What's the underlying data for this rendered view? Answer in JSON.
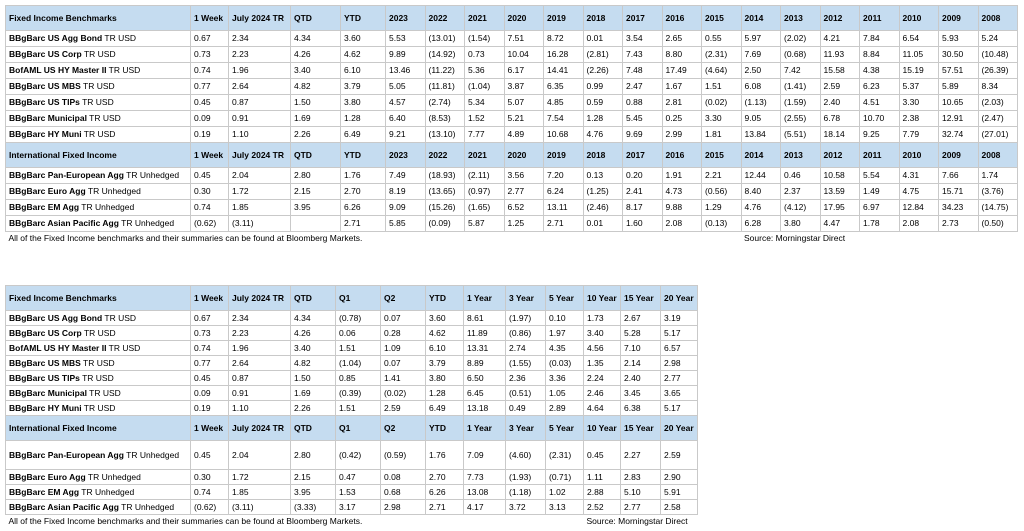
{
  "table1": {
    "header": [
      "Fixed Income Benchmarks",
      "1 Week",
      "July 2024 TR",
      "QTD",
      "YTD",
      "2023",
      "2022",
      "2021",
      "2020",
      "2019",
      "2018",
      "2017",
      "2016",
      "2015",
      "2014",
      "2013",
      "2012",
      "2011",
      "2010",
      "2009",
      "2008"
    ],
    "rows": [
      {
        "name": {
          "bold": "BBgBarc US Agg Bond",
          "rest": "TR USD"
        },
        "values": [
          "0.67",
          "2.34",
          "4.34",
          "3.60",
          "5.53",
          "(13.01)",
          "(1.54)",
          "7.51",
          "8.72",
          "0.01",
          "3.54",
          "2.65",
          "0.55",
          "5.97",
          "(2.02)",
          "4.21",
          "7.84",
          "6.54",
          "5.93",
          "5.24"
        ]
      },
      {
        "name": {
          "bold": "BBgBarc US Corp",
          "rest": "TR USD"
        },
        "values": [
          "0.73",
          "2.23",
          "4.26",
          "4.62",
          "9.89",
          "(14.92)",
          "0.73",
          "10.04",
          "16.28",
          "(2.81)",
          "7.43",
          "8.80",
          "(2.31)",
          "7.69",
          "(0.68)",
          "11.93",
          "8.84",
          "11.05",
          "30.50",
          "(10.48)"
        ]
      },
      {
        "name": {
          "bold": "BofAML US HY Master II",
          "rest": "TR USD"
        },
        "values": [
          "0.74",
          "1.96",
          "3.40",
          "6.10",
          "13.46",
          "(11.22)",
          "5.36",
          "6.17",
          "14.41",
          "(2.26)",
          "7.48",
          "17.49",
          "(4.64)",
          "2.50",
          "7.42",
          "15.58",
          "4.38",
          "15.19",
          "57.51",
          "(26.39)"
        ]
      },
      {
        "name": {
          "bold": "BBgBarc US MBS",
          "rest": "TR USD"
        },
        "values": [
          "0.77",
          "2.64",
          "4.82",
          "3.79",
          "5.05",
          "(11.81)",
          "(1.04)",
          "3.87",
          "6.35",
          "0.99",
          "2.47",
          "1.67",
          "1.51",
          "6.08",
          "(1.41)",
          "2.59",
          "6.23",
          "5.37",
          "5.89",
          "8.34"
        ]
      },
      {
        "name": {
          "bold": "BBgBarc US TIPs",
          "rest": "TR USD"
        },
        "values": [
          "0.45",
          "0.87",
          "1.50",
          "3.80",
          "4.57",
          "(2.74)",
          "5.34",
          "5.07",
          "4.85",
          "0.59",
          "0.88",
          "2.81",
          "(0.02)",
          "(1.13)",
          "(1.59)",
          "2.40",
          "4.51",
          "3.30",
          "10.65",
          "(2.03)"
        ]
      },
      {
        "name": {
          "bold": "BBgBarc Municipal",
          "rest": "TR USD"
        },
        "values": [
          "0.09",
          "0.91",
          "1.69",
          "1.28",
          "6.40",
          "(8.53)",
          "1.52",
          "5.21",
          "7.54",
          "1.28",
          "5.45",
          "0.25",
          "3.30",
          "9.05",
          "(2.55)",
          "6.78",
          "10.70",
          "2.38",
          "12.91",
          "(2.47)"
        ]
      },
      {
        "name": {
          "bold": "BBgBarc HY Muni",
          "rest": "TR USD"
        },
        "values": [
          "0.19",
          "1.10",
          "2.26",
          "6.49",
          "9.21",
          "(13.10)",
          "7.77",
          "4.89",
          "10.68",
          "4.76",
          "9.69",
          "2.99",
          "1.81",
          "13.84",
          "(5.51)",
          "18.14",
          "9.25",
          "7.79",
          "32.74",
          "(27.01)"
        ]
      }
    ],
    "intl_header": [
      "International Fixed Income",
      "1 Week",
      "July 2024 TR",
      "QTD",
      "YTD",
      "2023",
      "2022",
      "2021",
      "2020",
      "2019",
      "2018",
      "2017",
      "2016",
      "2015",
      "2014",
      "2013",
      "2012",
      "2011",
      "2010",
      "2009",
      "2008"
    ],
    "intl_rows": [
      {
        "name": {
          "bold": "BBgBarc Pan-European Agg",
          "rest": "TR Unhedged"
        },
        "values": [
          "0.45",
          "2.04",
          "2.80",
          "1.76",
          "7.49",
          "(18.93)",
          "(2.11)",
          "3.56",
          "7.20",
          "0.13",
          "0.20",
          "1.91",
          "2.21",
          "12.44",
          "0.46",
          "10.58",
          "5.54",
          "4.31",
          "7.66",
          "1.74"
        ]
      },
      {
        "name": {
          "bold": "BBgBarc Euro Agg",
          "rest": "TR Unhedged"
        },
        "values": [
          "0.30",
          "1.72",
          "2.15",
          "2.70",
          "8.19",
          "(13.65)",
          "(0.97)",
          "2.77",
          "6.24",
          "(1.25)",
          "2.41",
          "4.73",
          "(0.56)",
          "8.40",
          "2.37",
          "13.59",
          "1.49",
          "4.75",
          "15.71",
          "(3.76)"
        ]
      },
      {
        "name": {
          "bold": "BBgBarc EM Agg",
          "rest": "TR Unhedged"
        },
        "values": [
          "0.74",
          "1.85",
          "3.95",
          "6.26",
          "9.09",
          "(15.26)",
          "(1.65)",
          "6.52",
          "13.11",
          "(2.46)",
          "8.17",
          "9.88",
          "1.29",
          "4.76",
          "(4.12)",
          "17.95",
          "6.97",
          "12.84",
          "34.23",
          "(14.75)"
        ]
      },
      {
        "name": {
          "bold": "BBgBarc Asian Pacific Agg",
          "rest": "TR Unhedged"
        },
        "values": [
          "(0.62)",
          "(3.11)",
          null,
          "2.71",
          "5.85",
          "(0.09)",
          "5.87",
          "1.25",
          "2.71",
          "0.01",
          "1.60",
          "2.08",
          "(0.13)",
          "6.28",
          "3.80",
          "4.47",
          "1.78",
          "2.08",
          "2.73",
          "(0.50)"
        ]
      }
    ],
    "footnote": "All of the Fixed Income benchmarks and their summaries can be found at Bloomberg Markets.",
    "source": "Source: Morningstar Direct"
  },
  "table2": {
    "header": [
      "Fixed Income Benchmarks",
      "1 Week",
      "July 2024 TR",
      "QTD",
      "Q1",
      "Q2",
      "YTD",
      "1 Year",
      "3 Year",
      "5 Year",
      "10 Year",
      "15 Year",
      "20 Year"
    ],
    "rows": [
      {
        "name": {
          "bold": "BBgBarc US Agg Bond",
          "rest": "TR USD"
        },
        "values": [
          "0.67",
          "2.34",
          "4.34",
          "(0.78)",
          "0.07",
          "3.60",
          "8.61",
          "(1.97)",
          "0.10",
          "1.73",
          "2.67",
          "3.19"
        ]
      },
      {
        "name": {
          "bold": "BBgBarc US Corp",
          "rest": "TR USD"
        },
        "values": [
          "0.73",
          "2.23",
          "4.26",
          "0.06",
          "0.28",
          "4.62",
          "11.89",
          "(0.86)",
          "1.97",
          "3.40",
          "5.28",
          "5.17"
        ]
      },
      {
        "name": {
          "bold": "BofAML US HY Master II",
          "rest": "TR USD"
        },
        "values": [
          "0.74",
          "1.96",
          "3.40",
          "1.51",
          "1.09",
          "6.10",
          "13.31",
          "2.74",
          "4.35",
          "4.56",
          "7.10",
          "6.57"
        ]
      },
      {
        "name": {
          "bold": "BBgBarc US MBS",
          "rest": "TR USD"
        },
        "values": [
          "0.77",
          "2.64",
          "4.82",
          "(1.04)",
          "0.07",
          "3.79",
          "8.89",
          "(1.55)",
          "(0.03)",
          "1.35",
          "2.14",
          "2.98"
        ]
      },
      {
        "name": {
          "bold": "BBgBarc US TIPs",
          "rest": "TR USD"
        },
        "values": [
          "0.45",
          "0.87",
          "1.50",
          "0.85",
          "1.41",
          "3.80",
          "6.50",
          "2.36",
          "3.36",
          "2.24",
          "2.40",
          "2.77"
        ]
      },
      {
        "name": {
          "bold": "BBgBarc Municipal",
          "rest": "TR USD"
        },
        "values": [
          "0.09",
          "0.91",
          "1.69",
          "(0.39)",
          "(0.02)",
          "1.28",
          "6.45",
          "(0.51)",
          "1.05",
          "2.46",
          "3.45",
          "3.65"
        ]
      },
      {
        "name": {
          "bold": "BBgBarc HY Muni",
          "rest": "TR USD"
        },
        "values": [
          "0.19",
          "1.10",
          "2.26",
          "1.51",
          "2.59",
          "6.49",
          "13.18",
          "0.49",
          "2.89",
          "4.64",
          "6.38",
          "5.17"
        ]
      }
    ],
    "intl_header": [
      "International Fixed Income",
      "1 Week",
      "July 2024 TR",
      "QTD",
      "Q1",
      "Q2",
      "YTD",
      "1 Year",
      "3 Year",
      "5 Year",
      "10 Year",
      "15 Year",
      "20 Year"
    ],
    "intl_rows": [
      {
        "name": {
          "bold": "BBgBarc Pan-European Agg",
          "rest": "TR Unhedged"
        },
        "values": [
          "0.45",
          "2.04",
          "2.80",
          "(0.42)",
          "(0.59)",
          "1.76",
          "7.09",
          "(4.60)",
          "(2.31)",
          "0.45",
          "2.27",
          "2.59"
        ]
      },
      {
        "name": {
          "bold": "BBgBarc Euro Agg",
          "rest": "TR Unhedged"
        },
        "values": [
          "0.30",
          "1.72",
          "2.15",
          "0.47",
          "0.08",
          "2.70",
          "7.73",
          "(1.93)",
          "(0.71)",
          "1.11",
          "2.83",
          "2.90"
        ]
      },
      {
        "name": {
          "bold": "BBgBarc EM Agg",
          "rest": "TR Unhedged"
        },
        "values": [
          "0.74",
          "1.85",
          "3.95",
          "1.53",
          "0.68",
          "6.26",
          "13.08",
          "(1.18)",
          "1.02",
          "2.88",
          "5.10",
          "5.91"
        ]
      },
      {
        "name": {
          "bold": "BBgBarc Asian Pacific Agg",
          "rest": "TR Unhedged"
        },
        "values": [
          "(0.62)",
          "(3.11)",
          "(3.33)",
          "3.17",
          "2.98",
          "2.71",
          "4.17",
          "3.72",
          "3.13",
          "2.52",
          "2.77",
          "2.58"
        ]
      }
    ],
    "footnote": "All of the Fixed Income benchmarks and their summaries can be found at Bloomberg Markets.",
    "source": "Source: Morningstar Direct"
  }
}
